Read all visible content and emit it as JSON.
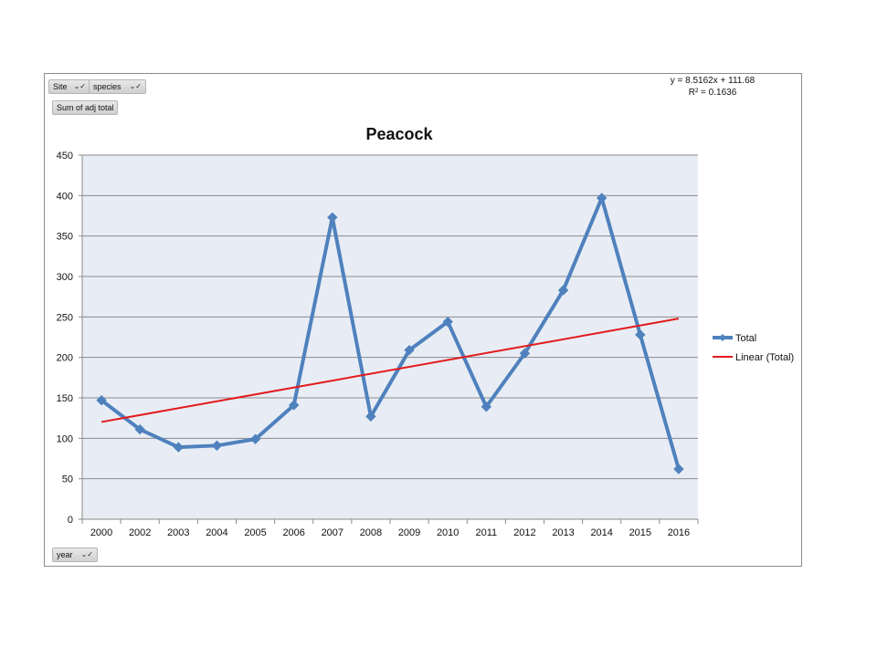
{
  "pivot_buttons": {
    "site": "Site",
    "species": "species",
    "sum": "Sum of adj total",
    "year": "year",
    "dropdown_glyph": "⌄✓"
  },
  "equation": {
    "line1": "y = 8.5162x + 111.68",
    "line2": "R² = 0.1636"
  },
  "chart_data": {
    "type": "line",
    "title": "Peacock",
    "xlabel": "",
    "ylabel": "",
    "categories": [
      "2000",
      "2002",
      "2003",
      "2004",
      "2005",
      "2006",
      "2007",
      "2008",
      "2009",
      "2010",
      "2011",
      "2012",
      "2013",
      "2014",
      "2015",
      "2016"
    ],
    "series": [
      {
        "name": "Total",
        "color": "#4f81bd",
        "values": [
          147,
          111,
          89,
          91,
          99,
          141,
          373,
          127,
          209,
          244,
          139,
          205,
          283,
          397,
          228,
          62
        ]
      }
    ],
    "trendline": {
      "name": "Linear (Total)",
      "color": "#e31a1c",
      "slope": 8.5162,
      "intercept": 111.68
    },
    "ylim": [
      0,
      450
    ],
    "yticks": [
      0,
      50,
      100,
      150,
      200,
      250,
      300,
      350,
      400,
      450
    ],
    "grid": true,
    "legend": "right",
    "plot_background": "#e8edf5"
  }
}
